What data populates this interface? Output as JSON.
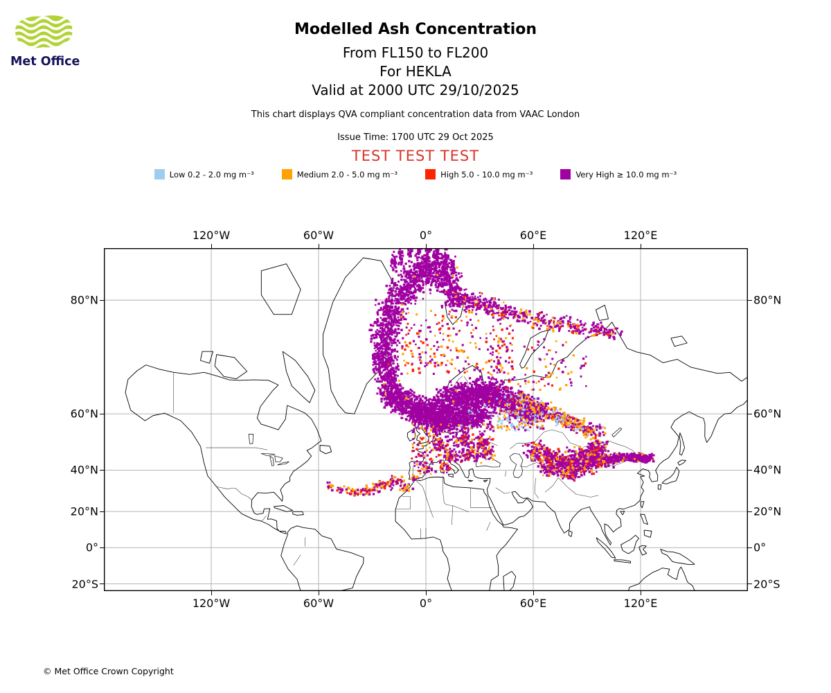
{
  "header": {
    "logo_text": "Met Office",
    "title": "Modelled Ash Concentration",
    "subtitle_flight_levels": "From FL150 to FL200",
    "subtitle_volcano": "For HEKLA",
    "subtitle_valid": "Valid at 2000 UTC 29/10/2025",
    "qva_note": "This chart displays QVA compliant concentration data from VAAC London",
    "issue_time": "Issue Time: 1700 UTC 29 Oct 2025",
    "test_banner": "TEST TEST TEST",
    "colors": {
      "brand_green": "#b2d235",
      "brand_navy": "#15135b",
      "test_red": "#d8352a"
    }
  },
  "footer": {
    "copyright": "© Met Office Crown Copyright"
  },
  "chart_data": {
    "type": "map-scatter",
    "title": "Modelled Ash Concentration",
    "projection": "mercator",
    "lon_min": -180,
    "lon_max": 180,
    "lat_min": -23.8,
    "lat_max": 84,
    "grid": {
      "lon_deg": [
        -120,
        -60,
        0,
        60,
        120
      ],
      "lat_deg": [
        80,
        60,
        40,
        20,
        0,
        -20
      ],
      "grid_on": true
    },
    "x_ticks": [
      {
        "deg": -120,
        "label": "120°W"
      },
      {
        "deg": -60,
        "label": "60°W"
      },
      {
        "deg": 0,
        "label": "0°"
      },
      {
        "deg": 60,
        "label": "60°E"
      },
      {
        "deg": 120,
        "label": "120°E"
      }
    ],
    "y_ticks": [
      {
        "deg": 80,
        "label": "80°N"
      },
      {
        "deg": 60,
        "label": "60°N"
      },
      {
        "deg": 40,
        "label": "40°N"
      },
      {
        "deg": 20,
        "label": "20°N"
      },
      {
        "deg": 0,
        "label": "0°"
      },
      {
        "deg": -20,
        "label": "20°S"
      }
    ],
    "levels": [
      {
        "key": "L",
        "name": "Low",
        "range_mg_m3": "0.2 - 2.0",
        "label": "Low 0.2 - 2.0 mg m⁻³",
        "color": "#9ecdf0"
      },
      {
        "key": "M",
        "name": "Medium",
        "range_mg_m3": "2.0 - 5.0",
        "label": "Medium 2.0 - 5.0 mg m⁻³",
        "color": "#ffa203"
      },
      {
        "key": "H",
        "name": "High",
        "range_mg_m3": "5.0 - 10.0",
        "label": "High 5.0 - 10.0 mg m⁻³",
        "color": "#fb2500"
      },
      {
        "key": "V",
        "name": "Very High",
        "range_mg_m3": "≥ 10.0",
        "label": "Very High ≥ 10.0 mg m⁻³",
        "color": "#a101a1"
      }
    ],
    "plume": {
      "source_volcano": "HEKLA",
      "description": "Mostly Very High ash: dense band from Iceland curving north over the Greenland Sea to Svalbard and the polar cap, speckled band east along ~78N to ~105E; large dense area over the Norwegian Sea, Scandinavia, Baltic and NW Russia; mixed band ESE to the Urals/west Siberia; patchy area over Kazakhstan-Mongolia ~38-52N with a streak near 45N 105-125E; scattered cells over central/eastern Europe 43-57N and arcs over the NE Atlantic near 25-37N.",
      "cluster_format": "['b',lon,lat,rx_px,ry_px,n,mix] = blob scatter; ['f',lon0,lon1,lat0,lat1,n,mix] = uniform field; mix = level-key weights",
      "clusters": [
        [
          "b",
          -19,
          64.3,
          10,
          11,
          120,
          {
            "V": 1
          }
        ],
        [
          "b",
          -20.5,
          67.3,
          11,
          12,
          130,
          {
            "V": 0.98,
            "M": 0.02
          }
        ],
        [
          "b",
          -22,
          70.3,
          12,
          12,
          140,
          {
            "V": 1
          }
        ],
        [
          "b",
          -23.5,
          73.3,
          13,
          13,
          150,
          {
            "V": 0.98,
            "H": 0.02
          }
        ],
        [
          "b",
          -23,
          76.3,
          14,
          13,
          160,
          {
            "V": 1
          }
        ],
        [
          "b",
          -19,
          78.8,
          15,
          13,
          170,
          {
            "V": 0.97,
            "M": 0.03
          }
        ],
        [
          "b",
          -12,
          80.8,
          17,
          13,
          180,
          {
            "V": 1
          }
        ],
        [
          "b",
          -4,
          82.2,
          19,
          13,
          190,
          {
            "V": 0.98,
            "M": 0.02
          }
        ],
        [
          "b",
          4,
          82.8,
          19,
          12,
          190,
          {
            "V": 1
          }
        ],
        [
          "b",
          11,
          81.8,
          15,
          12,
          160,
          {
            "V": 0.97,
            "M": 0.03
          }
        ],
        [
          "b",
          17,
          80.3,
          13,
          11,
          140,
          {
            "V": 0.95,
            "M": 0.05
          }
        ],
        [
          "b",
          -18,
          83.2,
          3,
          9,
          30,
          {
            "V": 1
          }
        ],
        [
          "b",
          -14,
          83.6,
          3,
          11,
          40,
          {
            "V": 1
          }
        ],
        [
          "b",
          -9,
          83.8,
          3,
          12,
          40,
          {
            "V": 1
          }
        ],
        [
          "b",
          -4,
          83.9,
          3,
          12,
          45,
          {
            "V": 1
          }
        ],
        [
          "b",
          1,
          83.9,
          3,
          12,
          45,
          {
            "V": 1
          }
        ],
        [
          "b",
          6,
          83.7,
          3,
          11,
          40,
          {
            "V": 1
          }
        ],
        [
          "b",
          11,
          83.4,
          3,
          10,
          35,
          {
            "V": 1
          }
        ],
        [
          "b",
          15,
          82.9,
          3,
          9,
          30,
          {
            "V": 1
          }
        ],
        [
          "b",
          25,
          79.8,
          14,
          9,
          85,
          {
            "V": 0.8,
            "M": 0.13,
            "H": 0.07
          }
        ],
        [
          "b",
          34,
          79.3,
          13,
          9,
          65,
          {
            "V": 0.75,
            "M": 0.15,
            "H": 0.1
          }
        ],
        [
          "b",
          44,
          78.8,
          12,
          8,
          55,
          {
            "V": 0.75,
            "M": 0.15,
            "H": 0.1
          }
        ],
        [
          "b",
          54,
          78.3,
          12,
          8,
          50,
          {
            "V": 0.7,
            "M": 0.2,
            "H": 0.1
          }
        ],
        [
          "b",
          64,
          77.8,
          12,
          8,
          48,
          {
            "V": 0.7,
            "M": 0.2,
            "H": 0.1
          }
        ],
        [
          "b",
          74,
          77.4,
          12,
          8,
          45,
          {
            "V": 0.7,
            "M": 0.18,
            "H": 0.12
          }
        ],
        [
          "b",
          84,
          77,
          12,
          8,
          45,
          {
            "V": 0.7,
            "M": 0.18,
            "H": 0.12
          }
        ],
        [
          "b",
          95,
          76.6,
          12,
          8,
          40,
          {
            "V": 0.7,
            "M": 0.2,
            "H": 0.1
          }
        ],
        [
          "b",
          104,
          76.2,
          10,
          7,
          30,
          {
            "V": 0.7,
            "M": 0.2,
            "H": 0.1
          }
        ],
        [
          "f",
          -14,
          50,
          69.5,
          79,
          230,
          {
            "V": 0.5,
            "M": 0.27,
            "H": 0.23
          }
        ],
        [
          "b",
          -12,
          63.3,
          15,
          12,
          190,
          {
            "V": 0.97,
            "M": 0.03
          }
        ],
        [
          "b",
          -4,
          61,
          17,
          14,
          230,
          {
            "V": 1
          }
        ],
        [
          "b",
          5,
          60,
          19,
          15,
          270,
          {
            "V": 0.98,
            "L": 0.02
          }
        ],
        [
          "b",
          13,
          62.5,
          19,
          17,
          290,
          {
            "V": 1
          }
        ],
        [
          "b",
          22,
          64,
          21,
          15,
          290,
          {
            "V": 0.98,
            "M": 0.02
          }
        ],
        [
          "b",
          30,
          65.5,
          21,
          14,
          270,
          {
            "V": 1
          }
        ],
        [
          "b",
          38,
          65,
          19,
          12,
          230,
          {
            "V": 0.97,
            "M": 0.03
          }
        ],
        [
          "b",
          18,
          58,
          19,
          10,
          210,
          {
            "V": 0.96,
            "L": 0.04
          }
        ],
        [
          "b",
          28,
          59.5,
          17,
          10,
          210,
          {
            "V": 0.97,
            "L": 0.03
          }
        ],
        [
          "b",
          8,
          56.5,
          13,
          8,
          140,
          {
            "V": 0.95,
            "M": 0.05
          }
        ],
        [
          "b",
          -2,
          59.5,
          12,
          8,
          120,
          {
            "V": 1
          }
        ],
        [
          "b",
          45,
          63,
          13,
          9,
          150,
          {
            "V": 0.9,
            "M": 0.06,
            "L": 0.04
          }
        ],
        [
          "b",
          52,
          61,
          12,
          8,
          120,
          {
            "V": 0.85,
            "M": 0.08,
            "L": 0.07
          }
        ],
        [
          "b",
          58,
          59.5,
          11,
          7,
          100,
          {
            "V": 0.8,
            "M": 0.1,
            "L": 0.1
          }
        ],
        [
          "b",
          52,
          64.5,
          10,
          7,
          65,
          {
            "V": 0.5,
            "M": 0.28,
            "L": 0.12,
            "H": 0.1
          }
        ],
        [
          "b",
          58,
          63,
          10,
          7,
          65,
          {
            "V": 0.5,
            "M": 0.28,
            "L": 0.12,
            "H": 0.1
          }
        ],
        [
          "b",
          64,
          61.5,
          10,
          7,
          65,
          {
            "V": 0.5,
            "M": 0.28,
            "L": 0.12,
            "H": 0.1
          }
        ],
        [
          "b",
          70,
          60,
          10,
          7,
          65,
          {
            "V": 0.5,
            "M": 0.28,
            "L": 0.12,
            "H": 0.1
          }
        ],
        [
          "b",
          76,
          58.5,
          10,
          7,
          62,
          {
            "V": 0.45,
            "M": 0.3,
            "L": 0.15,
            "H": 0.1
          }
        ],
        [
          "b",
          82,
          57,
          10,
          7,
          60,
          {
            "V": 0.45,
            "M": 0.3,
            "L": 0.15,
            "H": 0.1
          }
        ],
        [
          "b",
          88,
          55.5,
          10,
          7,
          58,
          {
            "V": 0.45,
            "M": 0.3,
            "L": 0.15,
            "H": 0.1
          }
        ],
        [
          "b",
          94,
          54.5,
          10,
          7,
          55,
          {
            "V": 0.45,
            "M": 0.3,
            "L": 0.15,
            "H": 0.1
          }
        ],
        [
          "f",
          40,
          66,
          55,
          62,
          120,
          {
            "L": 0.5,
            "M": 0.3,
            "V": 0.2
          }
        ],
        [
          "f",
          35,
          90,
          66,
          75.5,
          110,
          {
            "V": 0.55,
            "M": 0.25,
            "H": 0.2
          }
        ],
        [
          "b",
          62,
          48,
          13,
          9,
          100,
          {
            "V": 0.72,
            "M": 0.17,
            "H": 0.11
          }
        ],
        [
          "b",
          70,
          45,
          15,
          10,
          125,
          {
            "V": 0.72,
            "M": 0.17,
            "H": 0.11
          }
        ],
        [
          "b",
          78,
          43,
          15,
          10,
          125,
          {
            "V": 0.72,
            "M": 0.17,
            "H": 0.11
          }
        ],
        [
          "b",
          86,
          45,
          15,
          10,
          125,
          {
            "V": 0.72,
            "M": 0.17,
            "H": 0.11
          }
        ],
        [
          "b",
          94,
          46,
          14,
          9,
          115,
          {
            "V": 0.72,
            "M": 0.17,
            "H": 0.11
          }
        ],
        [
          "b",
          100,
          44,
          13,
          8,
          105,
          {
            "V": 0.72,
            "M": 0.17,
            "H": 0.11
          }
        ],
        [
          "b",
          88,
          41,
          13,
          8,
          95,
          {
            "V": 0.72,
            "M": 0.17,
            "H": 0.11
          }
        ],
        [
          "b",
          96,
          49,
          11,
          7,
          75,
          {
            "V": 0.72,
            "M": 0.17,
            "H": 0.11
          }
        ],
        [
          "b",
          80,
          38.5,
          11,
          7,
          65,
          {
            "V": 0.65,
            "M": 0.2,
            "H": 0.15
          }
        ],
        [
          "b",
          70,
          40,
          11,
          7,
          75,
          {
            "V": 0.65,
            "M": 0.2,
            "H": 0.15
          }
        ],
        [
          "b",
          105,
          45,
          9,
          4,
          75,
          {
            "V": 0.9,
            "M": 0.1
          }
        ],
        [
          "b",
          110,
          45.2,
          9,
          4,
          75,
          {
            "V": 0.9,
            "M": 0.1
          }
        ],
        [
          "b",
          115,
          45.3,
          9,
          4,
          75,
          {
            "V": 0.9,
            "M": 0.1
          }
        ],
        [
          "b",
          120,
          45.1,
          9,
          4,
          75,
          {
            "V": 0.9,
            "M": 0.1
          }
        ],
        [
          "b",
          124,
          44.9,
          7,
          4,
          55,
          {
            "V": 0.9,
            "M": 0.1
          }
        ],
        [
          "f",
          -8,
          38,
          43,
          57,
          210,
          {
            "V": 0.6,
            "M": 0.23,
            "H": 0.17
          }
        ],
        [
          "b",
          8,
          50,
          9,
          7,
          50,
          {
            "V": 0.7,
            "M": 0.2,
            "H": 0.1
          }
        ],
        [
          "b",
          20,
          52,
          11,
          7,
          60,
          {
            "V": 0.7,
            "M": 0.2,
            "H": 0.1
          }
        ],
        [
          "b",
          30,
          50,
          11,
          7,
          60,
          {
            "V": 0.7,
            "M": 0.2,
            "H": 0.1
          }
        ],
        [
          "b",
          14,
          46,
          9,
          6,
          42,
          {
            "V": 0.7,
            "M": 0.2,
            "H": 0.1
          }
        ],
        [
          "b",
          24,
          46,
          9,
          6,
          42,
          {
            "V": 0.7,
            "M": 0.2,
            "H": 0.1
          }
        ],
        [
          "b",
          34,
          47,
          9,
          6,
          42,
          {
            "V": 0.7,
            "M": 0.2,
            "H": 0.1
          }
        ],
        [
          "b",
          0,
          41,
          11,
          6,
          32,
          {
            "V": 0.65,
            "M": 0.25,
            "H": 0.1
          }
        ],
        [
          "b",
          10,
          41,
          9,
          5,
          26,
          {
            "V": 0.65,
            "M": 0.25,
            "H": 0.1
          }
        ],
        [
          "b",
          -17,
          35.5,
          8,
          5,
          36,
          {
            "V": 0.55,
            "M": 0.3,
            "H": 0.15
          }
        ],
        [
          "b",
          -24,
          33,
          10,
          5,
          40,
          {
            "V": 0.55,
            "M": 0.3,
            "H": 0.15
          }
        ],
        [
          "b",
          -32,
          30.8,
          10,
          5,
          36,
          {
            "V": 0.55,
            "M": 0.3,
            "H": 0.15
          }
        ],
        [
          "b",
          -40,
          30,
          9,
          4,
          28,
          {
            "V": 0.55,
            "M": 0.3,
            "H": 0.15
          }
        ],
        [
          "b",
          -48,
          31,
          7,
          4,
          20,
          {
            "V": 0.55,
            "M": 0.3,
            "H": 0.15
          }
        ],
        [
          "b",
          -53,
          33,
          6,
          4,
          14,
          {
            "V": 0.55,
            "M": 0.3,
            "H": 0.15
          }
        ],
        [
          "b",
          -10,
          32,
          7,
          4,
          22,
          {
            "V": 0.6,
            "M": 0.4
          }
        ],
        [
          "b",
          -7,
          36.5,
          5,
          3,
          14,
          {
            "V": 0.6,
            "M": 0.4
          }
        ]
      ]
    }
  }
}
